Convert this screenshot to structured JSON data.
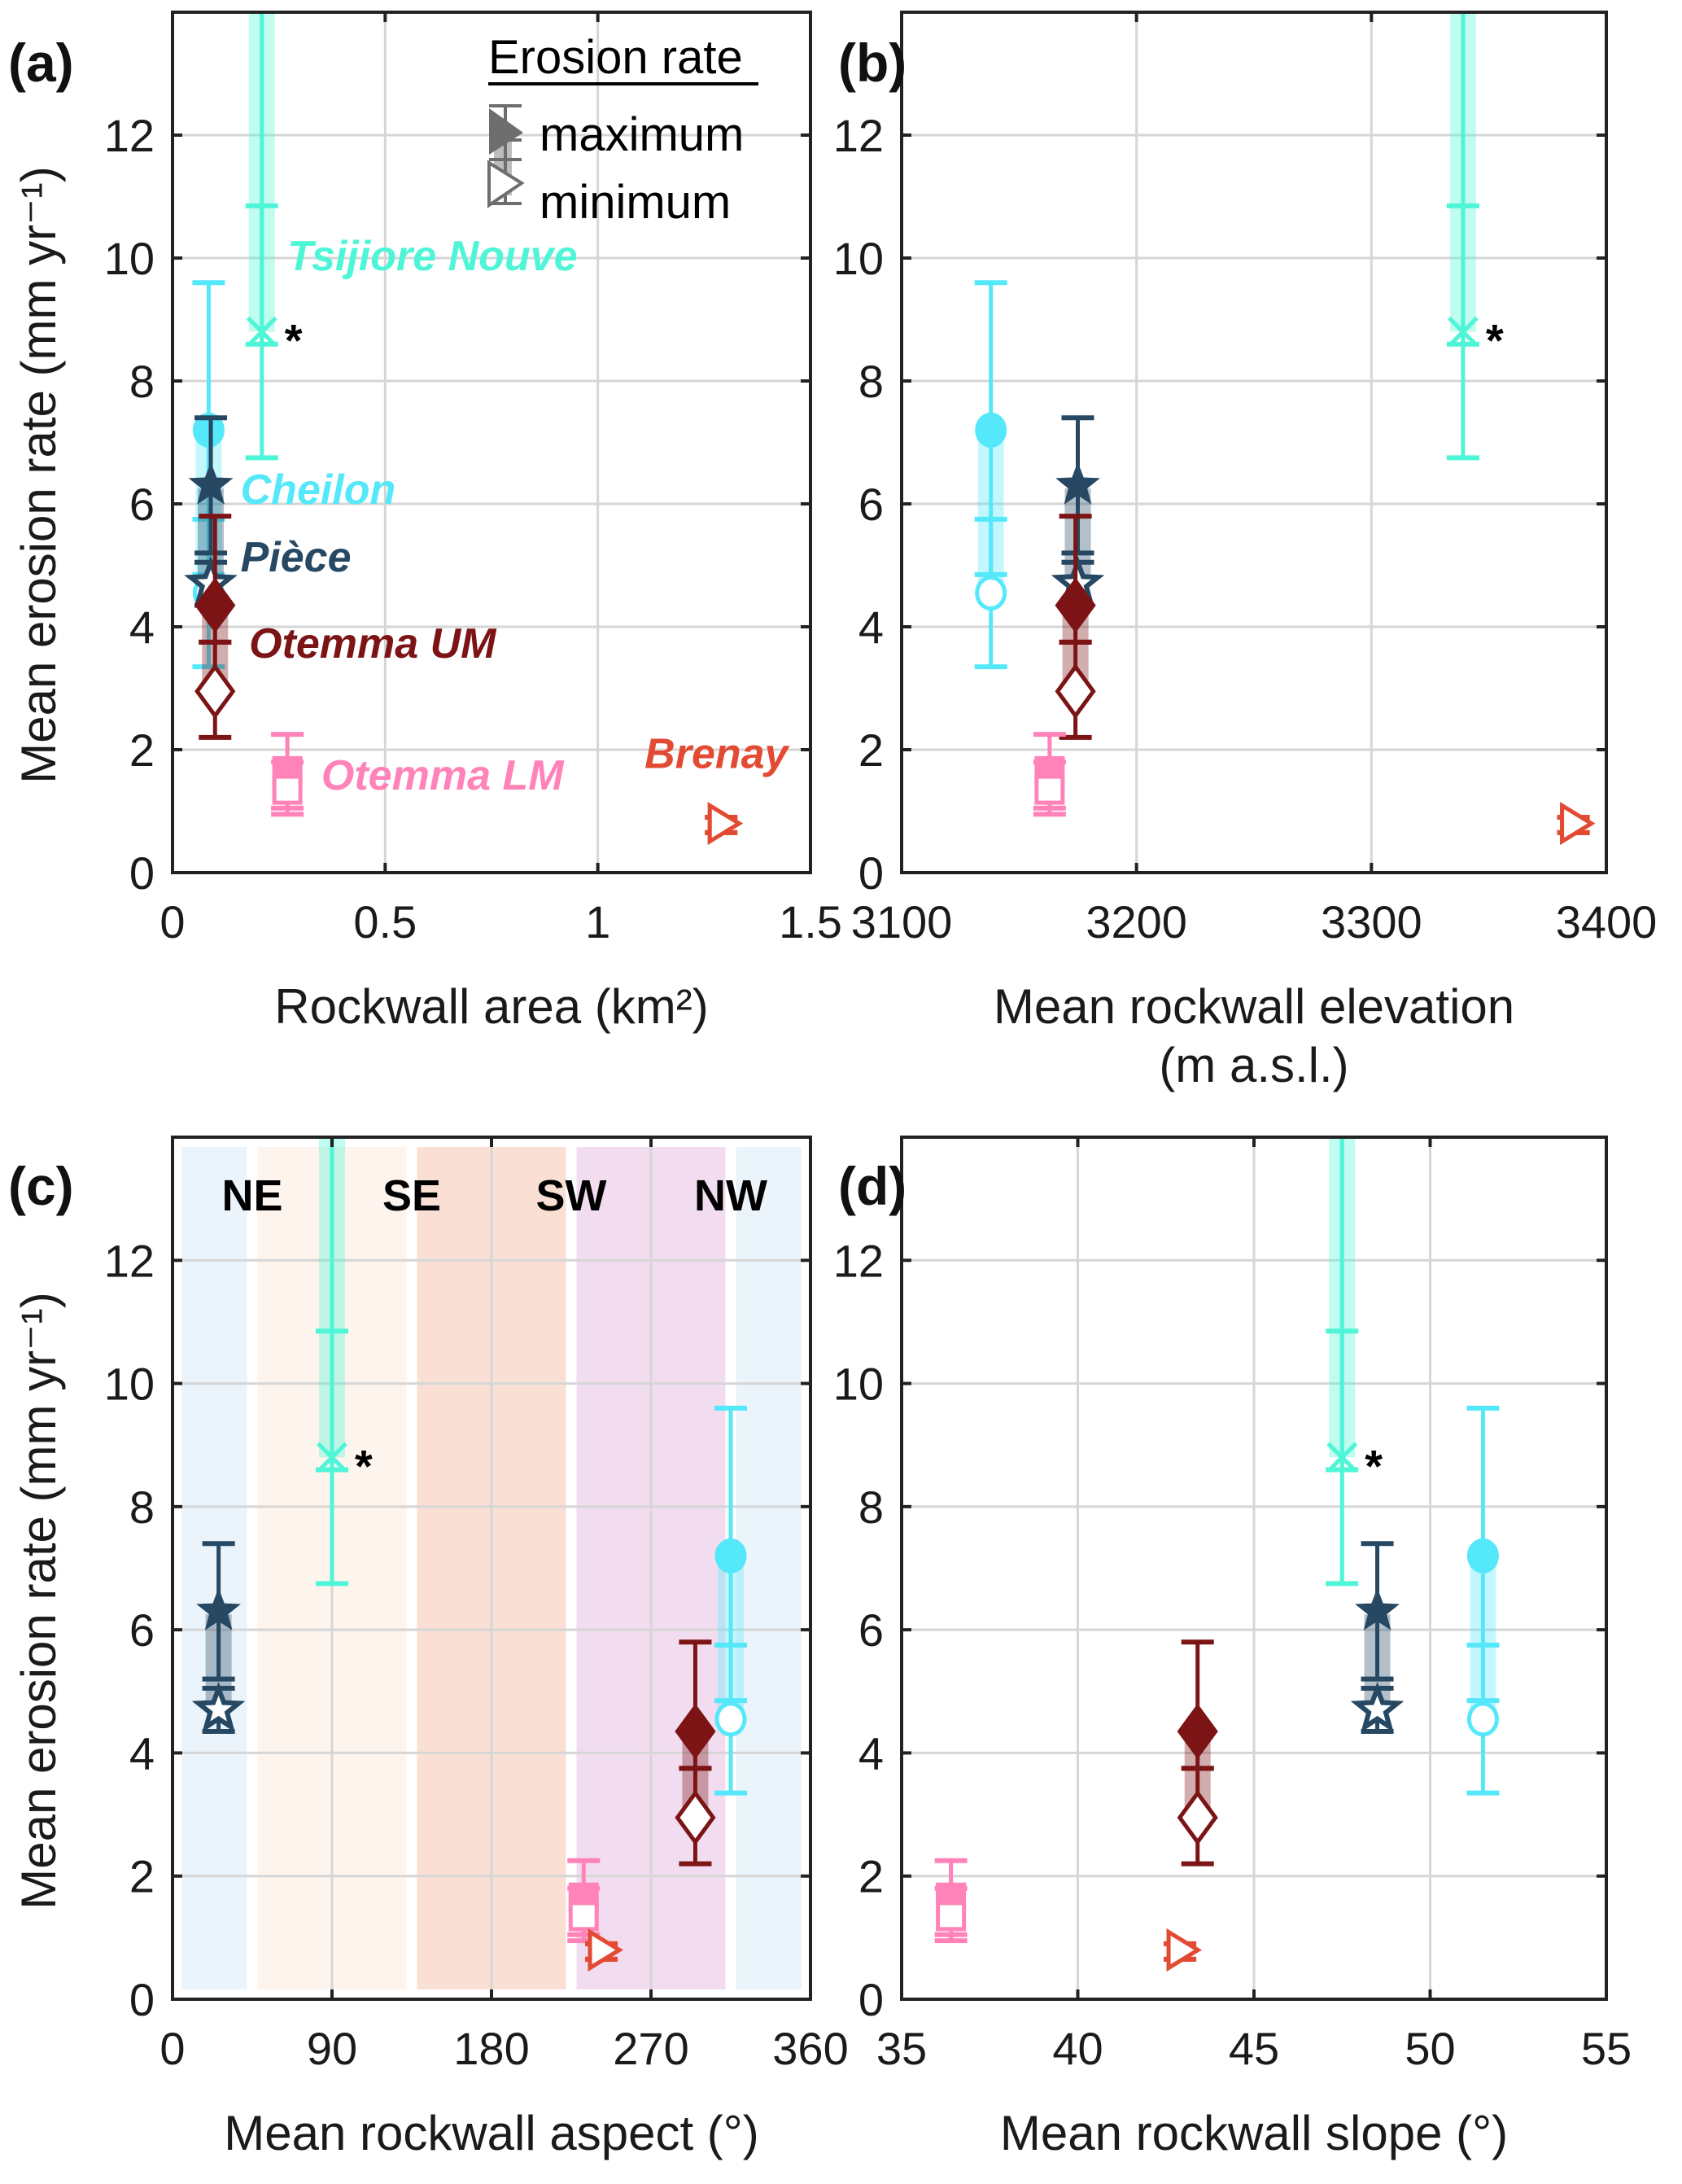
{
  "chart_data": {
    "type": "scatter",
    "shared_ylabel": "Mean erosion rate (mm yr⁻¹)",
    "ylim": [
      0,
      14
    ],
    "yticks": [
      0,
      2,
      4,
      6,
      8,
      10,
      12
    ],
    "grid": true,
    "legend": {
      "title": "Erosion rate",
      "placement": "top-right of panel (a)",
      "entries": [
        {
          "label": "maximum",
          "marker": "filled"
        },
        {
          "label": "minimum",
          "marker": "open"
        }
      ]
    },
    "sites": [
      {
        "name": "Tsijiore Nouve",
        "color": "#4ef5d6",
        "marker": "x",
        "note": "*",
        "max": {
          "value": 8.8,
          "err_low": 6.75,
          "err_high": 14.0
        },
        "min": {
          "value": 8.8,
          "err_low": 8.6,
          "err_high": 10.85
        },
        "band": [
          8.8,
          14.0
        ]
      },
      {
        "name": "Cheilon",
        "color": "#55e8fa",
        "marker": "circle",
        "note": "",
        "max": {
          "value": 7.2,
          "err_low": 4.85,
          "err_high": 9.6
        },
        "min": {
          "value": 4.55,
          "err_low": 3.35,
          "err_high": 5.75
        },
        "band": [
          4.55,
          7.2
        ]
      },
      {
        "name": "Pièce",
        "color": "#264863",
        "marker": "star",
        "note": "",
        "max": {
          "value": 6.3,
          "err_low": 5.2,
          "err_high": 7.4
        },
        "min": {
          "value": 4.7,
          "err_low": 4.35,
          "err_high": 5.05
        },
        "band": [
          4.7,
          6.25
        ]
      },
      {
        "name": "Otemma UM",
        "color": "#7c1416",
        "marker": "diamond",
        "note": "",
        "max": {
          "value": 4.35,
          "err_low": 3.75,
          "err_high": 5.8
        },
        "min": {
          "value": 2.95,
          "err_low": 2.2,
          "err_high": 3.75
        },
        "band": [
          2.95,
          4.35
        ]
      },
      {
        "name": "Otemma LM",
        "color": "#ff82b8",
        "marker": "square",
        "note": "",
        "max": {
          "value": 1.65,
          "err_low": 1.05,
          "err_high": 2.25
        },
        "min": {
          "value": 1.35,
          "err_low": 0.95,
          "err_high": 1.8
        },
        "band": [
          1.35,
          1.65
        ]
      },
      {
        "name": "Brenay",
        "color": "#e34a33",
        "marker": "triangle-right",
        "note": "",
        "max": {
          "value": 0.8,
          "err_low": 0.65,
          "err_high": 0.9
        },
        "min": {
          "value": 0.8,
          "err_low": 0.65,
          "err_high": 0.9
        },
        "band": [
          0.75,
          0.85
        ]
      }
    ],
    "panels": [
      {
        "id": "a",
        "label": "(a)",
        "xlabel": "Rockwall area (km²)",
        "xlabel2": "",
        "xlim": [
          0,
          1.5
        ],
        "xticks": [
          0,
          0.5,
          1,
          1.5
        ],
        "xtick_labels": [
          "0",
          "0.5",
          "1",
          "1.5"
        ],
        "x": {
          "Tsijiore Nouve": 0.21,
          "Cheilon": 0.085,
          "Pièce": 0.09,
          "Otemma UM": 0.1,
          "Otemma LM": 0.27,
          "Brenay": 1.29
        },
        "show_site_labels": true,
        "show_legend": true
      },
      {
        "id": "b",
        "label": "(b)",
        "xlabel": "Mean rockwall elevation",
        "xlabel2": "(m a.s.l.)",
        "xlim": [
          3100,
          3400
        ],
        "xticks": [
          3100,
          3200,
          3300,
          3400
        ],
        "xtick_labels": [
          "3100",
          "3200",
          "3300",
          "3400"
        ],
        "x": {
          "Tsijiore Nouve": 3339,
          "Cheilon": 3138,
          "Pièce": 3175,
          "Otemma UM": 3174,
          "Otemma LM": 3163,
          "Brenay": 3386
        },
        "show_site_labels": false,
        "show_legend": false
      },
      {
        "id": "c",
        "label": "(c)",
        "xlabel": "Mean rockwall aspect (°)",
        "xlabel2": "",
        "xlim": [
          0,
          360
        ],
        "xticks": [
          0,
          90,
          180,
          270,
          360
        ],
        "xtick_labels": [
          "0",
          "90",
          "180",
          "270",
          "360"
        ],
        "x": {
          "Tsijiore Nouve": 90,
          "Cheilon": 315,
          "Pièce": 26,
          "Otemma UM": 295,
          "Otemma LM": 232,
          "Brenay": 242
        },
        "show_site_labels": false,
        "show_legend": false,
        "aspect_bands": [
          {
            "label": "NE",
            "from": 5,
            "to": 42,
            "color": "#ebf4fb"
          },
          {
            "label": "",
            "from": 48,
            "to": 132,
            "color": "#fdf4ee"
          },
          {
            "label": "SE",
            "from": 138,
            "to": 222,
            "color": "#fae0d4"
          },
          {
            "label": "SW",
            "from": 228,
            "to": 312,
            "color": "#f1ddef"
          },
          {
            "label": "NW",
            "from": 318,
            "to": 355,
            "color": "#ebf4fb"
          }
        ],
        "direction_labels": [
          {
            "label": "NE",
            "x": 45
          },
          {
            "label": "SE",
            "x": 135
          },
          {
            "label": "SW",
            "x": 225
          },
          {
            "label": "NW",
            "x": 315
          }
        ]
      },
      {
        "id": "d",
        "label": "(d)",
        "xlabel": "Mean rockwall slope (°)",
        "xlabel2": "",
        "xlim": [
          35,
          55
        ],
        "xticks": [
          35,
          40,
          45,
          50,
          55
        ],
        "xtick_labels": [
          "35",
          "40",
          "45",
          "50",
          "55"
        ],
        "x": {
          "Tsijiore Nouve": 47.5,
          "Cheilon": 51.5,
          "Pièce": 48.5,
          "Otemma UM": 43.4,
          "Otemma LM": 36.4,
          "Brenay": 42.9
        },
        "show_site_labels": false,
        "show_legend": false
      }
    ],
    "site_label_positions_a": {
      "Tsijiore Nouve": {
        "x": 0.27,
        "y": 9.8
      },
      "Cheilon": {
        "x": 0.16,
        "y": 6.0
      },
      "Pièce": {
        "x": 0.16,
        "y": 4.9
      },
      "Otemma UM": {
        "x": 0.18,
        "y": 3.5
      },
      "Otemma LM": {
        "x": 0.35,
        "y": 1.35
      },
      "Brenay": {
        "x": 1.11,
        "y": 1.7
      }
    }
  }
}
